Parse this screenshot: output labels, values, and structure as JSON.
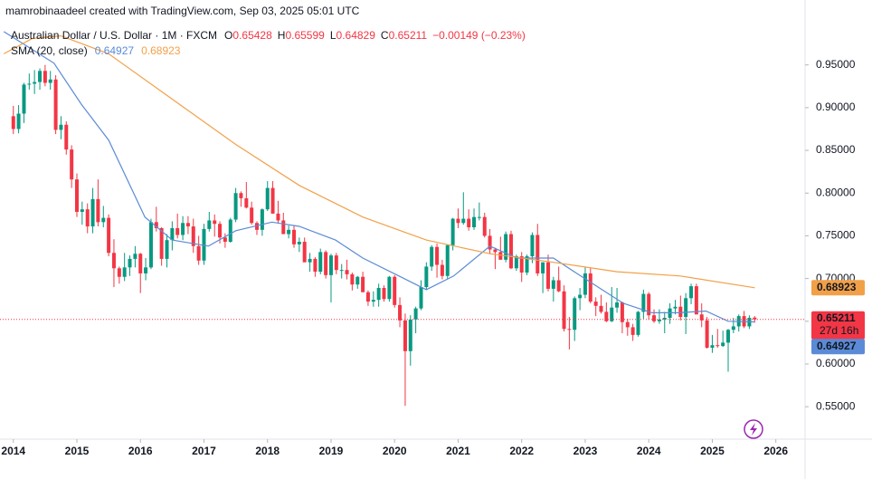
{
  "header": {
    "attribution": "mamrobinaadeel created with TradingView.com, Sep 03, 2025 05:01 UTC"
  },
  "chart_data": {
    "type": "candlestick",
    "title": "Australian Dollar / U.S. Dollar · 1M · FXCM",
    "ohlc_labels": [
      "O",
      "H",
      "L",
      "C"
    ],
    "change": "−0.00149 (−0.23%)",
    "up_color": "#089981",
    "down_color": "#f23645",
    "x": [
      2014,
      2014.083,
      2014.167,
      2014.25,
      2014.333,
      2014.417,
      2014.5,
      2014.583,
      2014.667,
      2014.75,
      2014.833,
      2014.917,
      2015,
      2015.083,
      2015.167,
      2015.25,
      2015.333,
      2015.417,
      2015.5,
      2015.583,
      2015.667,
      2015.75,
      2015.833,
      2015.917,
      2016,
      2016.083,
      2016.167,
      2016.25,
      2016.333,
      2016.417,
      2016.5,
      2016.583,
      2016.667,
      2016.75,
      2016.833,
      2016.917,
      2017,
      2017.083,
      2017.167,
      2017.25,
      2017.333,
      2017.417,
      2017.5,
      2017.583,
      2017.667,
      2017.75,
      2017.833,
      2017.917,
      2018,
      2018.083,
      2018.167,
      2018.25,
      2018.333,
      2018.417,
      2018.5,
      2018.583,
      2018.667,
      2018.75,
      2018.833,
      2018.917,
      2019,
      2019.083,
      2019.167,
      2019.25,
      2019.333,
      2019.417,
      2019.5,
      2019.583,
      2019.667,
      2019.75,
      2019.833,
      2019.917,
      2020,
      2020.083,
      2020.167,
      2020.25,
      2020.333,
      2020.417,
      2020.5,
      2020.583,
      2020.667,
      2020.75,
      2020.833,
      2020.917,
      2021,
      2021.083,
      2021.167,
      2021.25,
      2021.333,
      2021.417,
      2021.5,
      2021.583,
      2021.667,
      2021.75,
      2021.833,
      2021.917,
      2022,
      2022.083,
      2022.167,
      2022.25,
      2022.333,
      2022.417,
      2022.5,
      2022.583,
      2022.667,
      2022.75,
      2022.833,
      2022.917,
      2023,
      2023.083,
      2023.167,
      2023.25,
      2023.333,
      2023.417,
      2023.5,
      2023.583,
      2023.667,
      2023.75,
      2023.833,
      2023.917,
      2024,
      2024.083,
      2024.167,
      2024.25,
      2024.333,
      2024.417,
      2024.5,
      2024.583,
      2024.667,
      2024.75,
      2024.833,
      2024.917,
      2025,
      2025.083,
      2025.167,
      2025.25,
      2025.333,
      2025.417,
      2025.5,
      2025.583,
      2025.667
    ],
    "open": [
      0.89,
      0.875,
      0.893,
      0.927,
      0.928,
      0.93,
      0.943,
      0.929,
      0.933,
      0.874,
      0.88,
      0.851,
      0.816,
      0.778,
      0.781,
      0.761,
      0.793,
      0.766,
      0.771,
      0.73,
      0.712,
      0.702,
      0.713,
      0.723,
      0.729,
      0.706,
      0.713,
      0.766,
      0.759,
      0.723,
      0.745,
      0.759,
      0.751,
      0.765,
      0.761,
      0.738,
      0.721,
      0.758,
      0.768,
      0.764,
      0.748,
      0.743,
      0.769,
      0.8,
      0.794,
      0.783,
      0.765,
      0.757,
      0.781,
      0.806,
      0.776,
      0.768,
      0.752,
      0.757,
      0.74,
      0.743,
      0.719,
      0.723,
      0.708,
      0.731,
      0.704,
      0.727,
      0.71,
      0.71,
      0.705,
      0.693,
      0.702,
      0.684,
      0.673,
      0.675,
      0.689,
      0.676,
      0.702,
      0.669,
      0.651,
      0.615,
      0.652,
      0.665,
      0.69,
      0.714,
      0.737,
      0.716,
      0.703,
      0.739,
      0.77,
      0.765,
      0.77,
      0.76,
      0.772,
      0.772,
      0.75,
      0.734,
      0.731,
      0.722,
      0.752,
      0.712,
      0.726,
      0.707,
      0.726,
      0.751,
      0.706,
      0.719,
      0.688,
      0.698,
      0.685,
      0.641,
      0.64,
      0.677,
      0.681,
      0.706,
      0.673,
      0.668,
      0.661,
      0.65,
      0.666,
      0.672,
      0.649,
      0.643,
      0.634,
      0.661,
      0.682,
      0.657,
      0.65,
      0.652,
      0.654,
      0.665,
      0.667,
      0.655,
      0.677,
      0.691,
      0.658,
      0.651,
      0.619,
      0.622,
      0.621,
      0.625,
      0.64,
      0.644,
      0.656,
      0.644,
      0.65428
    ],
    "high": [
      0.902,
      0.903,
      0.929,
      0.94,
      0.944,
      0.946,
      0.95,
      0.943,
      0.938,
      0.89,
      0.884,
      0.856,
      0.823,
      0.79,
      0.788,
      0.806,
      0.816,
      0.785,
      0.775,
      0.746,
      0.714,
      0.73,
      0.727,
      0.738,
      0.73,
      0.724,
      0.77,
      0.784,
      0.76,
      0.752,
      0.767,
      0.776,
      0.773,
      0.773,
      0.77,
      0.75,
      0.764,
      0.778,
      0.775,
      0.767,
      0.753,
      0.771,
      0.806,
      0.802,
      0.813,
      0.79,
      0.767,
      0.782,
      0.814,
      0.814,
      0.791,
      0.777,
      0.762,
      0.762,
      0.748,
      0.748,
      0.73,
      0.725,
      0.735,
      0.733,
      0.729,
      0.73,
      0.717,
      0.722,
      0.707,
      0.703,
      0.708,
      0.686,
      0.685,
      0.694,
      0.692,
      0.703,
      0.704,
      0.678,
      0.659,
      0.657,
      0.667,
      0.698,
      0.719,
      0.739,
      0.741,
      0.722,
      0.74,
      0.771,
      0.782,
      0.801,
      0.781,
      0.782,
      0.789,
      0.777,
      0.758,
      0.736,
      0.749,
      0.755,
      0.756,
      0.728,
      0.731,
      0.728,
      0.754,
      0.764,
      0.719,
      0.728,
      0.702,
      0.714,
      0.692,
      0.655,
      0.679,
      0.689,
      0.714,
      0.713,
      0.678,
      0.681,
      0.672,
      0.69,
      0.689,
      0.673,
      0.653,
      0.647,
      0.662,
      0.687,
      0.684,
      0.664,
      0.664,
      0.661,
      0.671,
      0.675,
      0.68,
      0.683,
      0.694,
      0.694,
      0.671,
      0.655,
      0.634,
      0.641,
      0.639,
      0.641,
      0.654,
      0.658,
      0.662,
      0.657,
      0.65599
    ],
    "low": [
      0.869,
      0.87,
      0.882,
      0.921,
      0.916,
      0.921,
      0.925,
      0.921,
      0.869,
      0.863,
      0.845,
      0.806,
      0.772,
      0.763,
      0.753,
      0.753,
      0.761,
      0.76,
      0.726,
      0.69,
      0.694,
      0.697,
      0.703,
      0.713,
      0.683,
      0.698,
      0.711,
      0.755,
      0.715,
      0.713,
      0.733,
      0.747,
      0.745,
      0.752,
      0.73,
      0.716,
      0.716,
      0.755,
      0.749,
      0.741,
      0.736,
      0.742,
      0.766,
      0.784,
      0.782,
      0.763,
      0.751,
      0.75,
      0.779,
      0.776,
      0.765,
      0.752,
      0.747,
      0.736,
      0.731,
      0.72,
      0.708,
      0.702,
      0.705,
      0.7,
      0.672,
      0.705,
      0.7,
      0.699,
      0.686,
      0.688,
      0.684,
      0.668,
      0.667,
      0.667,
      0.673,
      0.673,
      0.666,
      0.643,
      0.551,
      0.598,
      0.636,
      0.663,
      0.687,
      0.709,
      0.701,
      0.699,
      0.699,
      0.733,
      0.759,
      0.763,
      0.756,
      0.757,
      0.768,
      0.748,
      0.729,
      0.711,
      0.722,
      0.719,
      0.711,
      0.709,
      0.696,
      0.704,
      0.718,
      0.703,
      0.683,
      0.685,
      0.673,
      0.684,
      0.638,
      0.617,
      0.627,
      0.663,
      0.677,
      0.671,
      0.656,
      0.659,
      0.649,
      0.649,
      0.66,
      0.636,
      0.633,
      0.627,
      0.632,
      0.653,
      0.652,
      0.648,
      0.647,
      0.636,
      0.647,
      0.658,
      0.651,
      0.635,
      0.67,
      0.658,
      0.643,
      0.618,
      0.613,
      0.619,
      0.62,
      0.591,
      0.636,
      0.638,
      0.642,
      0.641,
      0.64829
    ],
    "close": [
      0.875,
      0.893,
      0.927,
      0.928,
      0.93,
      0.943,
      0.929,
      0.933,
      0.874,
      0.88,
      0.851,
      0.816,
      0.778,
      0.781,
      0.761,
      0.793,
      0.766,
      0.771,
      0.73,
      0.712,
      0.702,
      0.713,
      0.723,
      0.729,
      0.706,
      0.713,
      0.766,
      0.759,
      0.723,
      0.745,
      0.759,
      0.751,
      0.765,
      0.761,
      0.738,
      0.721,
      0.758,
      0.768,
      0.764,
      0.748,
      0.743,
      0.769,
      0.8,
      0.794,
      0.783,
      0.765,
      0.757,
      0.781,
      0.806,
      0.776,
      0.768,
      0.752,
      0.757,
      0.74,
      0.743,
      0.719,
      0.723,
      0.708,
      0.731,
      0.704,
      0.727,
      0.71,
      0.71,
      0.705,
      0.693,
      0.702,
      0.684,
      0.673,
      0.675,
      0.689,
      0.676,
      0.702,
      0.669,
      0.651,
      0.615,
      0.652,
      0.665,
      0.69,
      0.714,
      0.737,
      0.716,
      0.703,
      0.739,
      0.77,
      0.765,
      0.77,
      0.76,
      0.772,
      0.772,
      0.75,
      0.734,
      0.731,
      0.722,
      0.752,
      0.712,
      0.726,
      0.707,
      0.726,
      0.751,
      0.706,
      0.719,
      0.688,
      0.698,
      0.685,
      0.641,
      0.64,
      0.677,
      0.681,
      0.706,
      0.673,
      0.668,
      0.661,
      0.65,
      0.666,
      0.672,
      0.649,
      0.643,
      0.634,
      0.661,
      0.682,
      0.657,
      0.65,
      0.652,
      0.654,
      0.665,
      0.667,
      0.655,
      0.677,
      0.691,
      0.658,
      0.651,
      0.619,
      0.622,
      0.621,
      0.625,
      0.64,
      0.644,
      0.656,
      0.644,
      0.654,
      0.65211
    ],
    "indicator_label": "SMA (20, close)",
    "lines": [
      {
        "color": "#5b8bd6",
        "x": [
          2013.85,
          2014.64,
          2015.07,
          2015.5,
          2016.07,
          2016.5,
          2017.07,
          2017.5,
          2018.07,
          2018.5,
          2019.07,
          2019.5,
          2020.07,
          2020.5,
          2020.93,
          2021.5,
          2021.93,
          2022.5,
          2022.93,
          2023.6,
          2024.05,
          2024.47,
          2024.9,
          2025.25,
          2025.67
        ],
        "values": [
          0.989,
          0.952,
          0.904,
          0.862,
          0.772,
          0.745,
          0.738,
          0.756,
          0.766,
          0.761,
          0.745,
          0.724,
          0.703,
          0.687,
          0.703,
          0.738,
          0.724,
          0.724,
          0.703,
          0.671,
          0.66,
          0.66,
          0.662,
          0.65,
          0.64927
        ]
      },
      {
        "color": "#f2a048",
        "x": [
          2013.85,
          2014.3,
          2014.75,
          2015.5,
          2016.5,
          2017.5,
          2018.5,
          2019.5,
          2020.5,
          2021.5,
          2022.5,
          2023.5,
          2024.5,
          2025.67
        ],
        "values": [
          0.963,
          0.981,
          0.984,
          0.963,
          0.91,
          0.857,
          0.809,
          0.772,
          0.745,
          0.729,
          0.719,
          0.708,
          0.703,
          0.68923
        ]
      }
    ],
    "countdown": "27d 16h",
    "xlim": [
      2013.79,
      2026.46
    ],
    "xticks": [
      2014,
      2015,
      2016,
      2017,
      2018,
      2019,
      2020,
      2021,
      2022,
      2023,
      2024,
      2025,
      2026
    ],
    "ylim": [
      0.512,
      1.026
    ],
    "yticks": [
      {
        "value": 0.95,
        "label": "0.95000"
      },
      {
        "value": 0.9,
        "label": "0.90000"
      },
      {
        "value": 0.85,
        "label": "0.85000"
      },
      {
        "value": 0.8,
        "label": "0.80000"
      },
      {
        "value": 0.75,
        "label": "0.75000"
      },
      {
        "value": 0.7,
        "label": "0.70000"
      },
      {
        "value": 0.65,
        "label": "0.65000"
      },
      {
        "value": 0.6,
        "label": "0.60000"
      },
      {
        "value": 0.55,
        "label": "0.55000"
      }
    ],
    "grid": false
  }
}
